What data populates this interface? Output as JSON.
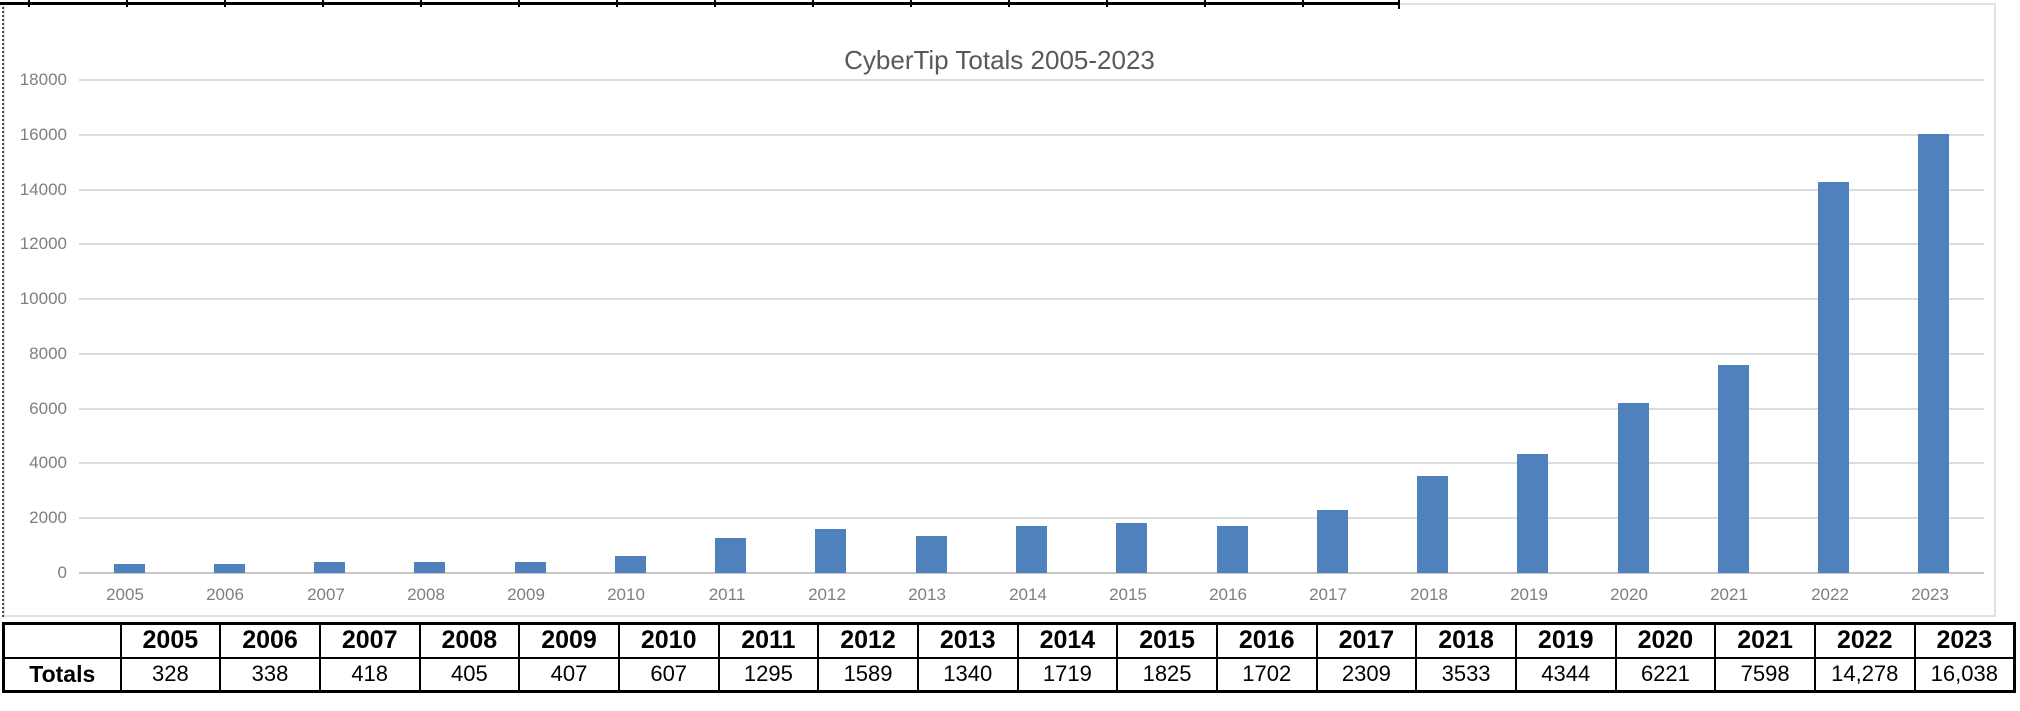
{
  "chart_data": {
    "type": "bar",
    "title": "CyberTip Totals 2005-2023",
    "categories": [
      "2005",
      "2006",
      "2007",
      "2008",
      "2009",
      "2010",
      "2011",
      "2012",
      "2013",
      "2014",
      "2015",
      "2016",
      "2017",
      "2018",
      "2019",
      "2020",
      "2021",
      "2022",
      "2023"
    ],
    "values": [
      328,
      338,
      418,
      405,
      407,
      607,
      1295,
      1589,
      1340,
      1719,
      1825,
      1702,
      2309,
      3533,
      4344,
      6221,
      7598,
      14278,
      16038
    ],
    "xlabel": "",
    "ylabel": "",
    "ylim": [
      0,
      18000
    ],
    "ytick_step": 2000,
    "yticks": [
      "18000",
      "16000",
      "14000",
      "12000",
      "10000",
      "8000",
      "6000",
      "4000",
      "2000",
      "0"
    ],
    "grid": true,
    "legend": "none",
    "bar_color": "#4F81BD",
    "gridline_color": "#DCDCDC",
    "axis_line_color": "#C6C6C6",
    "title_color": "#595959",
    "tick_label_color": "#7F7F7F"
  },
  "table": {
    "corner_label": "",
    "row_label": "Totals",
    "columns": [
      "2005",
      "2006",
      "2007",
      "2008",
      "2009",
      "2010",
      "2011",
      "2012",
      "2013",
      "2014",
      "2015",
      "2016",
      "2017",
      "2018",
      "2019",
      "2020",
      "2021",
      "2022",
      "2023"
    ],
    "values": [
      "328",
      "338",
      "418",
      "405",
      "407",
      "607",
      "1295",
      "1589",
      "1340",
      "1719",
      "1825",
      "1702",
      "2309",
      "3533",
      "4344",
      "6221",
      "7598",
      "14,278",
      "16,038"
    ]
  }
}
